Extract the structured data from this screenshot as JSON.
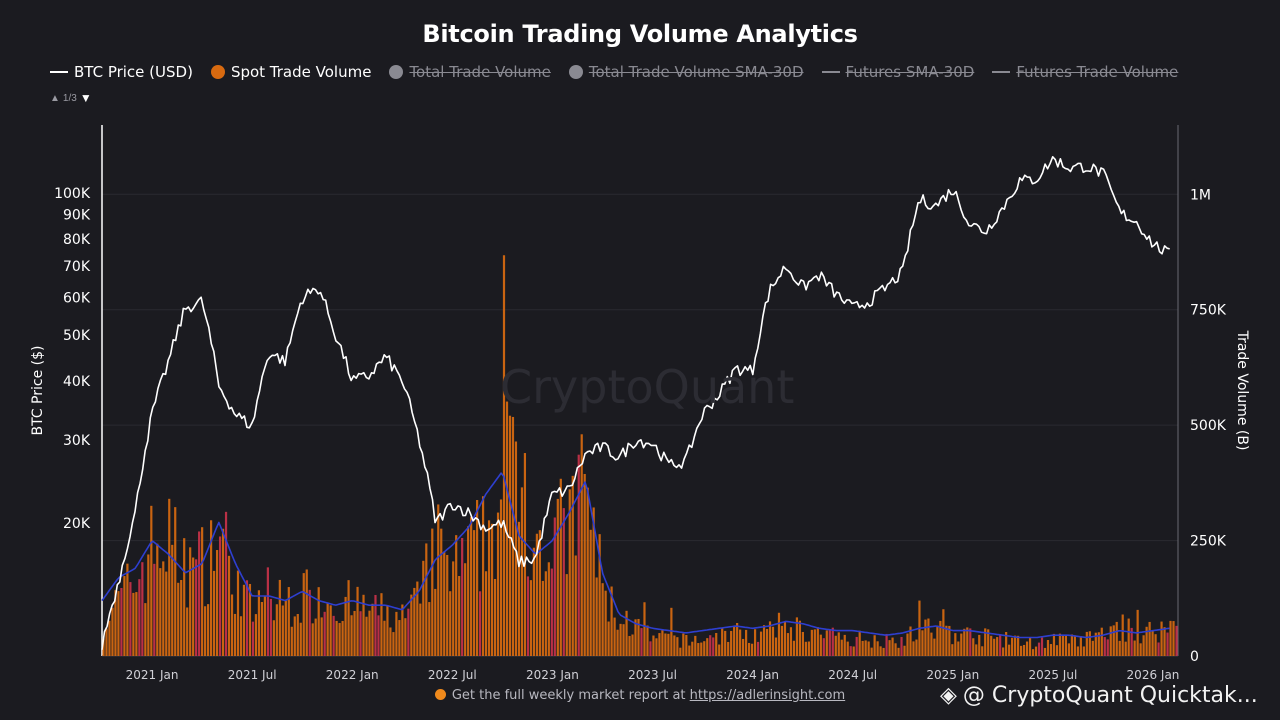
{
  "title": "Bitcoin Trading Volume Analytics",
  "legend": [
    {
      "label": "BTC Price (USD)",
      "symbol": "line",
      "color": "#ffffff",
      "active": true
    },
    {
      "label": "Spot Trade Volume",
      "symbol": "dot",
      "color": "#d86a10",
      "active": true
    },
    {
      "label": "Total Trade Volume",
      "symbol": "dot",
      "color": "#8a8a92",
      "active": false
    },
    {
      "label": "Total Trade Volume SMA-30D",
      "symbol": "dot",
      "color": "#8a8a92",
      "active": false
    },
    {
      "label": "Futures SMA-30D",
      "symbol": "line",
      "color": "#8a8a92",
      "active": false
    },
    {
      "label": "Futures Trade Volume",
      "symbol": "line",
      "color": "#8a8a92",
      "active": false
    }
  ],
  "pager": {
    "text": "1/3"
  },
  "watermark": "CryptoQuant",
  "footer": {
    "text": "Get the full weekly market report at ",
    "link": "https://adlerinsight.com"
  },
  "badge": {
    "text": "@ CryptoQuant Quicktak..."
  },
  "chart_data": {
    "type": "line",
    "x_ticks": [
      "2021 Jan",
      "2021 Jul",
      "2022 Jan",
      "2022 Jul",
      "2023 Jan",
      "2023 Jul",
      "2024 Jan",
      "2024 Jul",
      "2025 Jan",
      "2025 Jul",
      "2026 Jan"
    ],
    "y_left": {
      "label": "BTC Price ($)",
      "scale": "log",
      "ticks": [
        "20K",
        "30K",
        "40K",
        "50K",
        "60K",
        "70K",
        "80K",
        "90K",
        "100K"
      ],
      "tick_values": [
        20000,
        30000,
        40000,
        50000,
        60000,
        70000,
        80000,
        90000,
        100000
      ]
    },
    "y_right": {
      "label": "Trade Volume (B)",
      "ticks": [
        "0",
        "250K",
        "500K",
        "750K",
        "1M"
      ],
      "tick_values": [
        0,
        250000,
        500000,
        750000,
        1000000
      ],
      "range": [
        0,
        1150000
      ]
    },
    "series": [
      {
        "name": "BTC Price (USD)",
        "axis": "left",
        "color": "#ffffff",
        "x": [
          "2020-10",
          "2020-11",
          "2020-12",
          "2021-01",
          "2021-02",
          "2021-03",
          "2021-04",
          "2021-05",
          "2021-06",
          "2021-07",
          "2021-08",
          "2021-09",
          "2021-10",
          "2021-11",
          "2021-12",
          "2022-01",
          "2022-02",
          "2022-03",
          "2022-04",
          "2022-05",
          "2022-06",
          "2022-07",
          "2022-08",
          "2022-09",
          "2022-10",
          "2022-11",
          "2022-12",
          "2023-01",
          "2023-02",
          "2023-03",
          "2023-04",
          "2023-05",
          "2023-06",
          "2023-07",
          "2023-08",
          "2023-09",
          "2023-10",
          "2023-11",
          "2023-12",
          "2024-01",
          "2024-02",
          "2024-03",
          "2024-04",
          "2024-05",
          "2024-06",
          "2024-07",
          "2024-08",
          "2024-09",
          "2024-10",
          "2024-11",
          "2024-12",
          "2025-01",
          "2025-02",
          "2025-03",
          "2025-04",
          "2025-05",
          "2025-06",
          "2025-07",
          "2025-08",
          "2025-09",
          "2025-10",
          "2025-11",
          "2025-12",
          "2026-01",
          "2026-02"
        ],
        "values": [
          11000,
          15000,
          21000,
          34000,
          44000,
          57000,
          59000,
          39000,
          34000,
          32000,
          46000,
          44000,
          60000,
          63000,
          50000,
          40000,
          41000,
          45000,
          40000,
          30000,
          20000,
          22000,
          21000,
          19500,
          20000,
          16500,
          16800,
          23000,
          23500,
          28000,
          29000,
          27500,
          30000,
          29500,
          26500,
          27000,
          34000,
          37500,
          42500,
          42000,
          62000,
          70000,
          63000,
          67000,
          61000,
          57000,
          59000,
          63000,
          68000,
          97000,
          94000,
          102000,
          86000,
          83000,
          93000,
          106000,
          107000,
          118000,
          113000,
          114000,
          110000,
          91000,
          87000,
          78000,
          74000
        ]
      },
      {
        "name": "Spot Trade Volume",
        "axis": "right",
        "color": "#d86a10",
        "x": [
          "2020-10",
          "2020-11",
          "2020-12",
          "2021-01",
          "2021-02",
          "2021-03",
          "2021-04",
          "2021-05",
          "2021-06",
          "2021-07",
          "2021-08",
          "2021-09",
          "2021-10",
          "2021-11",
          "2021-12",
          "2022-01",
          "2022-02",
          "2022-03",
          "2022-04",
          "2022-05",
          "2022-06",
          "2022-07",
          "2022-08",
          "2022-09",
          "2022-10",
          "2022-11",
          "2022-12",
          "2023-01",
          "2023-02",
          "2023-03",
          "2023-04",
          "2023-05",
          "2023-06",
          "2023-07",
          "2023-08",
          "2023-09",
          "2023-10",
          "2023-11",
          "2023-12",
          "2024-01",
          "2024-02",
          "2024-03",
          "2024-04",
          "2024-05",
          "2024-06",
          "2024-07",
          "2024-08",
          "2024-09",
          "2024-10",
          "2024-11",
          "2024-12",
          "2025-01",
          "2025-02",
          "2025-03",
          "2025-04",
          "2025-05",
          "2025-06",
          "2025-07",
          "2025-08",
          "2025-09",
          "2025-10",
          "2025-11",
          "2025-12",
          "2026-01",
          "2026-02"
        ],
        "values": [
          80000,
          130000,
          180000,
          260000,
          280000,
          200000,
          220000,
          300000,
          180000,
          110000,
          120000,
          130000,
          140000,
          150000,
          130000,
          120000,
          110000,
          100000,
          90000,
          130000,
          260000,
          200000,
          230000,
          290000,
          380000,
          520000,
          260000,
          280000,
          300000,
          420000,
          160000,
          90000,
          70000,
          40000,
          45000,
          35000,
          40000,
          50000,
          55000,
          50000,
          55000,
          80000,
          60000,
          50000,
          40000,
          45000,
          40000,
          35000,
          40000,
          60000,
          65000,
          55000,
          50000,
          45000,
          40000,
          35000,
          30000,
          40000,
          35000,
          40000,
          50000,
          70000,
          55000,
          60000,
          70000
        ]
      },
      {
        "name": "Total Trade Volume SMA-30D",
        "axis": "right",
        "color": "#2e3fd0",
        "x": [
          "2020-10",
          "2020-11",
          "2020-12",
          "2021-01",
          "2021-02",
          "2021-03",
          "2021-04",
          "2021-05",
          "2021-06",
          "2021-07",
          "2021-08",
          "2021-09",
          "2021-10",
          "2021-11",
          "2021-12",
          "2022-01",
          "2022-02",
          "2022-03",
          "2022-04",
          "2022-05",
          "2022-06",
          "2022-07",
          "2022-08",
          "2022-09",
          "2022-10",
          "2022-11",
          "2022-12",
          "2023-01",
          "2023-02",
          "2023-03",
          "2023-04",
          "2023-05",
          "2023-06",
          "2023-07",
          "2023-08",
          "2023-09",
          "2023-10",
          "2023-11",
          "2023-12",
          "2024-01",
          "2024-02",
          "2024-03",
          "2024-04",
          "2024-05",
          "2024-06",
          "2024-07",
          "2024-08",
          "2024-09",
          "2024-10",
          "2024-11",
          "2024-12",
          "2025-01",
          "2025-02",
          "2025-03",
          "2025-04",
          "2025-05",
          "2025-06",
          "2025-07",
          "2025-08",
          "2025-09",
          "2025-10",
          "2025-11",
          "2025-12",
          "2026-01",
          "2026-02"
        ],
        "values": [
          120000,
          170000,
          190000,
          250000,
          220000,
          180000,
          200000,
          290000,
          200000,
          130000,
          130000,
          120000,
          140000,
          120000,
          110000,
          120000,
          110000,
          110000,
          100000,
          140000,
          210000,
          240000,
          280000,
          350000,
          400000,
          260000,
          220000,
          250000,
          310000,
          380000,
          180000,
          90000,
          70000,
          60000,
          55000,
          50000,
          55000,
          60000,
          65000,
          60000,
          65000,
          75000,
          70000,
          60000,
          55000,
          55000,
          50000,
          45000,
          50000,
          60000,
          65000,
          55000,
          55000,
          50000,
          45000,
          40000,
          40000,
          45000,
          45000,
          40000,
          45000,
          55000,
          50000,
          55000,
          60000
        ]
      }
    ]
  }
}
